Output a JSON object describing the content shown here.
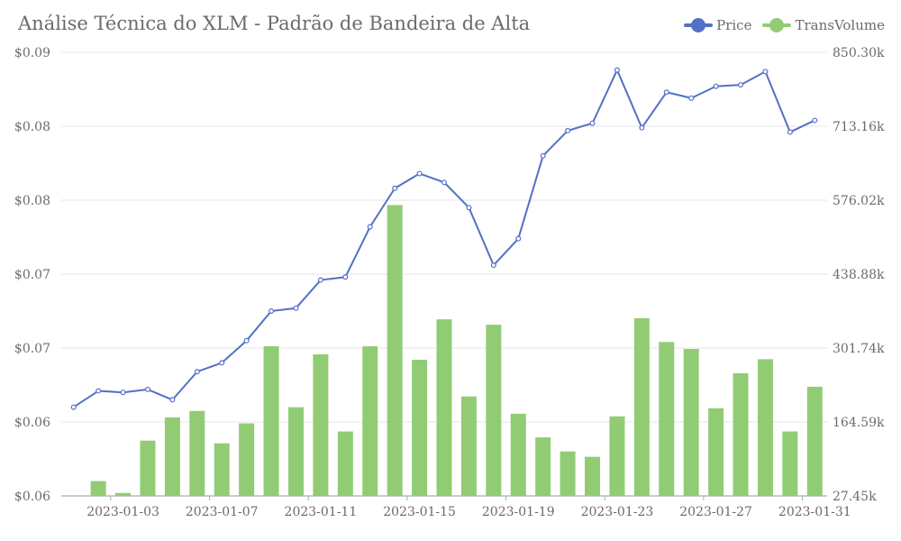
{
  "chart_data": {
    "type": "bar+line",
    "title": "Análise Técnica do XLM - Padrão de Bandeira de Alta",
    "x": [
      "2023-01-01",
      "2023-01-02",
      "2023-01-03",
      "2023-01-04",
      "2023-01-05",
      "2023-01-06",
      "2023-01-07",
      "2023-01-08",
      "2023-01-09",
      "2023-01-10",
      "2023-01-11",
      "2023-01-12",
      "2023-01-13",
      "2023-01-14",
      "2023-01-15",
      "2023-01-16",
      "2023-01-17",
      "2023-01-18",
      "2023-01-19",
      "2023-01-20",
      "2023-01-21",
      "2023-01-22",
      "2023-01-23",
      "2023-01-24",
      "2023-01-25",
      "2023-01-26",
      "2023-01-27",
      "2023-01-28",
      "2023-01-29",
      "2023-01-30",
      "2023-01-31"
    ],
    "x_tick_labels": [
      "2023-01-03",
      "2023-01-07",
      "2023-01-11",
      "2023-01-15",
      "2023-01-19",
      "2023-01-23",
      "2023-01-27",
      "2023-01-31"
    ],
    "series": [
      {
        "name": "Price",
        "type": "line",
        "axis": "left",
        "color": "#5470c6",
        "values": [
          0.066,
          0.0671,
          0.067,
          0.0672,
          0.0665,
          0.0684,
          0.069,
          0.0705,
          0.0725,
          0.0727,
          0.0746,
          0.0748,
          0.0782,
          0.0808,
          0.0818,
          0.0812,
          0.0795,
          0.0756,
          0.0774,
          0.083,
          0.0847,
          0.0852,
          0.0888,
          0.0849,
          0.0873,
          0.0869,
          0.0877,
          0.0878,
          0.0887,
          0.0846,
          0.0854
        ]
      },
      {
        "name": "TransVolume",
        "type": "bar",
        "axis": "right",
        "color": "#91cc75",
        "values": [
          28000,
          55000,
          33000,
          130000,
          173000,
          185000,
          125000,
          162000,
          305000,
          192000,
          290000,
          147000,
          305000,
          567000,
          280000,
          355000,
          212000,
          345000,
          180000,
          136000,
          110000,
          100000,
          175000,
          357000,
          313000,
          300000,
          190000,
          255000,
          281000,
          147000,
          230000
        ]
      }
    ],
    "left_axis": {
      "min": 0.06,
      "max": 0.09,
      "tick_values": [
        0.06,
        0.065,
        0.07,
        0.075,
        0.08,
        0.085,
        0.09
      ],
      "tick_labels": [
        "$0.06",
        "$0.06",
        "$0.07",
        "$0.07",
        "$0.08",
        "$0.08",
        "$0.09"
      ]
    },
    "right_axis": {
      "min": 27450,
      "max": 850300,
      "tick_values": [
        27450,
        164590,
        301740,
        438880,
        576020,
        713160,
        850300
      ],
      "tick_labels": [
        "27.45k",
        "164.59k",
        "301.74k",
        "438.88k",
        "576.02k",
        "713.16k",
        "850.30k"
      ]
    },
    "grid": true,
    "legend_position": "top-right",
    "grid_color": "#e6e6e6",
    "axis_color": "#9fb8a0",
    "text_color": "#6b6b6b"
  }
}
